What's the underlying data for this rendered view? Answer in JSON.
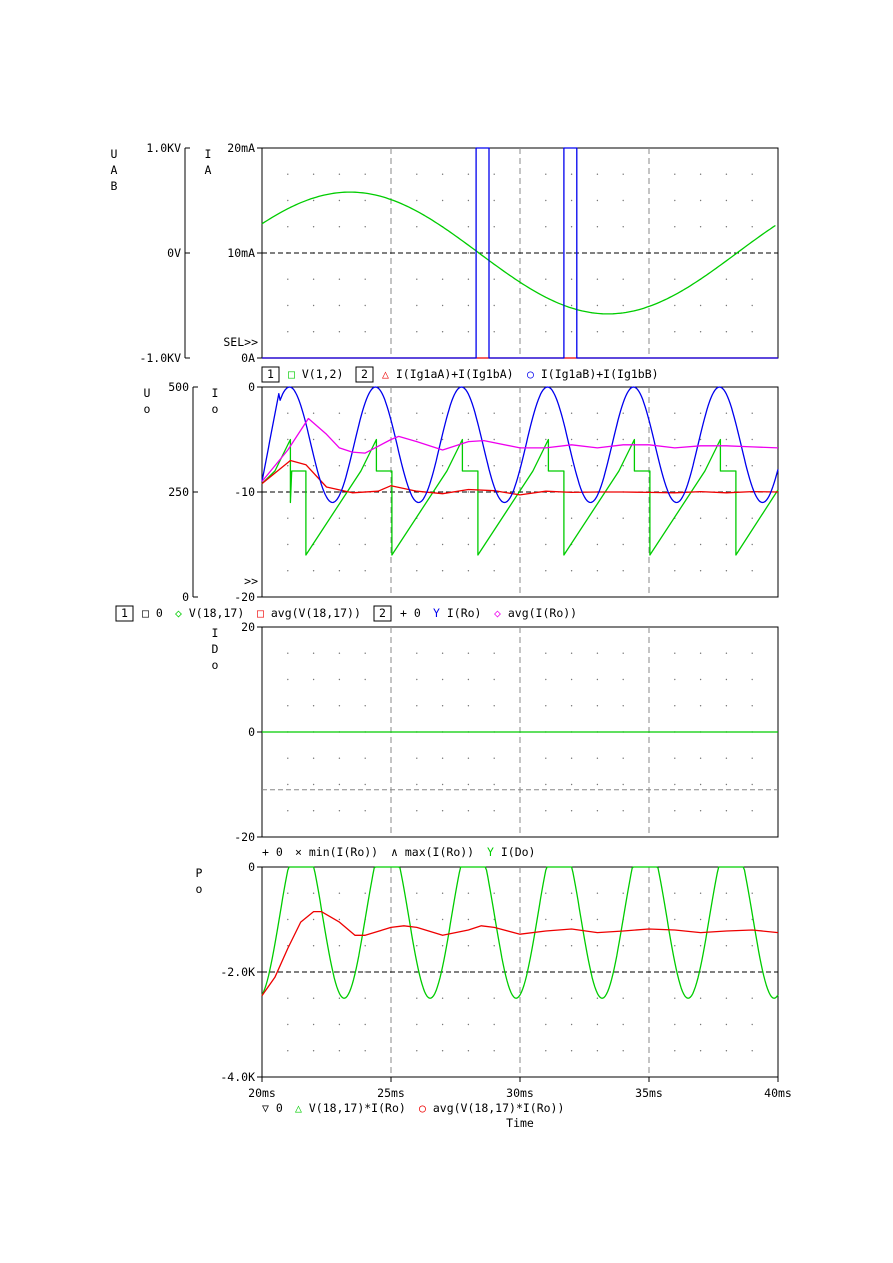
{
  "x_axis": {
    "label": "Time",
    "range_ms": [
      20,
      40
    ],
    "ticks": [
      {
        "value": 20,
        "label": "20ms"
      },
      {
        "value": 25,
        "label": "25ms"
      },
      {
        "value": 30,
        "label": "30ms"
      },
      {
        "value": 35,
        "label": "35ms"
      },
      {
        "value": 40,
        "label": "40ms"
      }
    ]
  },
  "panels": [
    {
      "id": "p1",
      "left_axis_title": [
        "U",
        "A",
        "B"
      ],
      "left_ticks": [
        {
          "value": 1,
          "label": "1.0KV"
        },
        {
          "value": 0,
          "label": "0V"
        },
        {
          "value": -1,
          "label": "-1.0KV"
        }
      ],
      "right_axis_title": [
        "I",
        "A"
      ],
      "right_ticks": [
        {
          "value": 20,
          "label": "20mA"
        },
        {
          "value": 10,
          "label": "10mA"
        },
        {
          "value": 0,
          "label": "0A"
        }
      ],
      "sel_marker": "SEL>>",
      "legend": [
        {
          "text": "1",
          "boxed": true
        },
        {
          "text": "□ V(1,2)",
          "color": "#00cc00"
        },
        {
          "text": "2",
          "boxed": true
        },
        {
          "text": "△ I(Ig1aA)+I(Ig1bA)",
          "color": "#ee0000"
        },
        {
          "text": "○ I(Ig1aB)+I(Ig1bB)",
          "color": "#0000ee"
        }
      ]
    },
    {
      "id": "p2",
      "left_axis_title": [
        "U",
        "o"
      ],
      "left_ticks": [
        {
          "value": 500,
          "label": "500"
        },
        {
          "value": 250,
          "label": "250"
        },
        {
          "value": 0,
          "label": "0"
        }
      ],
      "right_axis_title": [
        "I",
        "o"
      ],
      "right_ticks": [
        {
          "value": 0,
          "label": "0"
        },
        {
          "value": -10,
          "label": "-10"
        },
        {
          "value": -20,
          "label": "-20"
        }
      ],
      "sel_marker": ">>",
      "legend": [
        {
          "text": "1",
          "boxed": true
        },
        {
          "text": "□ 0",
          "color": "#000000"
        },
        {
          "text": "◇ V(18,17)",
          "color": "#00cc00"
        },
        {
          "text": "□ avg(V(18,17))",
          "color": "#ee0000"
        },
        {
          "text": "2",
          "boxed": true
        },
        {
          "text": "+ 0",
          "color": "#000000"
        },
        {
          "text": "Y I(Ro)",
          "color": "#0000ee"
        },
        {
          "text": "◇ avg(I(Ro))",
          "color": "#ee00ee"
        }
      ]
    },
    {
      "id": "p3",
      "right_axis_title": [
        "I",
        "D",
        "o"
      ],
      "right_ticks": [
        {
          "value": 20,
          "label": "20"
        },
        {
          "value": 0,
          "label": "0"
        },
        {
          "value": -20,
          "label": "-20"
        }
      ],
      "legend": [
        {
          "text": "+ 0",
          "color": "#000000"
        },
        {
          "text": "× min(I(Ro))",
          "color": "#000000"
        },
        {
          "text": "∧ max(I(Ro))",
          "color": "#000000"
        },
        {
          "text": "Y I(Do)",
          "color": "#00cc00"
        }
      ]
    },
    {
      "id": "p4",
      "right_axis_title": [
        "P",
        "o"
      ],
      "right_ticks": [
        {
          "value": 0,
          "label": "0"
        },
        {
          "value": -2,
          "label": "-2.0K"
        },
        {
          "value": -4,
          "label": "-4.0K"
        }
      ],
      "legend": [
        {
          "text": "▽ 0",
          "color": "#000000"
        },
        {
          "text": "△ V(18,17)*I(Ro)",
          "color": "#00cc00"
        },
        {
          "text": "○ avg(V(18,17)*I(Ro))",
          "color": "#ee0000"
        }
      ]
    }
  ],
  "colors": {
    "green": "#00cc00",
    "red": "#ee0000",
    "blue": "#0000ee",
    "magenta": "#ee00ee",
    "grid": "#888888"
  },
  "chart_data": [
    {
      "type": "line",
      "title": "",
      "xlabel": "Time",
      "x_unit": "ms",
      "xlim": [
        20,
        40
      ],
      "y_axes": [
        {
          "name": "UAB",
          "unit": "kV",
          "ylim": [
            -1,
            1
          ]
        },
        {
          "name": "IA",
          "unit": "mA",
          "ylim": [
            0,
            20
          ]
        }
      ],
      "series": [
        {
          "name": "V(1,2)",
          "axis": "UAB",
          "color": "#00cc00",
          "x": [
            20,
            21,
            22,
            23,
            24,
            25,
            26,
            27,
            28,
            29,
            30,
            31,
            32,
            33,
            34,
            35,
            36,
            37,
            38,
            39,
            40
          ],
          "values": [
            0.28,
            0.44,
            0.54,
            0.58,
            0.56,
            0.49,
            0.38,
            0.24,
            0.08,
            -0.08,
            -0.24,
            -0.38,
            -0.49,
            -0.56,
            -0.58,
            -0.54,
            -0.44,
            -0.3,
            -0.14,
            0.04,
            0.28
          ]
        },
        {
          "name": "I(Ig1aA)+I(Ig1bA)",
          "axis": "IA",
          "color": "#ee0000",
          "x": [
            20,
            28.3,
            28.3,
            28.8,
            28.8,
            31.7,
            31.7,
            32.2,
            32.2,
            40
          ],
          "values": [
            0,
            0,
            0,
            0,
            0,
            0,
            0,
            0,
            0,
            0
          ]
        },
        {
          "name": "I(Ig1aB)+I(Ig1bB)",
          "axis": "IA",
          "color": "#0000ee",
          "x": [
            20,
            28.3,
            28.3,
            28.8,
            28.8,
            31.7,
            31.7,
            32.2,
            32.2,
            40
          ],
          "values": [
            0,
            0,
            20,
            20,
            0,
            0,
            20,
            20,
            0,
            0
          ]
        }
      ],
      "grid": true
    },
    {
      "type": "line",
      "title": "",
      "xlabel": "Time",
      "x_unit": "ms",
      "xlim": [
        20,
        40
      ],
      "y_axes": [
        {
          "name": "Uo",
          "unit": "V",
          "ylim": [
            0,
            500
          ]
        },
        {
          "name": "Io",
          "unit": "A",
          "ylim": [
            -20,
            0
          ]
        }
      ],
      "series": [
        {
          "name": "V(18,17)",
          "axis": "Uo",
          "color": "#00cc00",
          "period_ms": 3.333,
          "peak": 375,
          "trough": 100,
          "first_peak": 325,
          "note_step": 300
        },
        {
          "name": "avg(V(18,17))",
          "axis": "Uo",
          "color": "#ee0000",
          "x": [
            20,
            21.1,
            21.7,
            22.5,
            23.5,
            24.5,
            25,
            26,
            27,
            28,
            29,
            30,
            31,
            32,
            33,
            34,
            35,
            36,
            37,
            38,
            39,
            40
          ],
          "values": [
            270,
            325,
            315,
            262,
            248,
            252,
            265,
            252,
            246,
            256,
            253,
            243,
            252,
            249,
            250,
            250,
            249,
            248,
            251,
            248,
            251,
            250
          ]
        },
        {
          "name": "I(Ro)",
          "axis": "Io",
          "color": "#0000ee",
          "period_ms": 3.333,
          "max": 0,
          "min": -11
        },
        {
          "name": "avg(I(Ro))",
          "axis": "Io",
          "color": "#ee00ee",
          "x": [
            20,
            21,
            21.8,
            22.5,
            23,
            23.5,
            24,
            25,
            25.3,
            26,
            27,
            28,
            28.6,
            30,
            31,
            32,
            33,
            34,
            35,
            36,
            37,
            38,
            39,
            40
          ],
          "values": [
            -9,
            -6,
            -3,
            -4.5,
            -5.8,
            -6.2,
            -6.3,
            -5,
            -4.7,
            -5.2,
            -6,
            -5.2,
            -5.1,
            -5.8,
            -5.8,
            -5.5,
            -5.8,
            -5.5,
            -5.5,
            -5.8,
            -5.6,
            -5.6,
            -5.7,
            -5.8
          ]
        }
      ],
      "grid": true
    },
    {
      "type": "line",
      "title": "",
      "xlabel": "Time",
      "x_unit": "ms",
      "xlim": [
        20,
        40
      ],
      "y_axes": [
        {
          "name": "IDo",
          "unit": "A",
          "ylim": [
            -20,
            20
          ]
        }
      ],
      "series": [
        {
          "name": "I(Do)",
          "axis": "IDo",
          "color": "#00cc00",
          "x": [
            20,
            40
          ],
          "values": [
            0,
            0
          ]
        }
      ],
      "grid": true
    },
    {
      "type": "line",
      "title": "",
      "xlabel": "Time",
      "x_unit": "ms",
      "xlim": [
        20,
        40
      ],
      "y_axes": [
        {
          "name": "Po",
          "unit": "kW",
          "ylim": [
            -4,
            0
          ]
        }
      ],
      "series": [
        {
          "name": "V(18,17)*I(Ro)",
          "axis": "Po",
          "color": "#00cc00",
          "period_ms": 3.333,
          "max": 0,
          "min": -2.5
        },
        {
          "name": "avg(V(18,17)*I(Ro))",
          "axis": "Po",
          "color": "#ee0000",
          "x": [
            20,
            20.5,
            21,
            21.5,
            22,
            22.3,
            23,
            23.6,
            24,
            25,
            25.5,
            26,
            27,
            28,
            28.5,
            29,
            30,
            31,
            32,
            33,
            34,
            35,
            36,
            37,
            38,
            39,
            40
          ],
          "values": [
            -2.45,
            -2.1,
            -1.55,
            -1.05,
            -0.85,
            -0.85,
            -1.05,
            -1.3,
            -1.3,
            -1.15,
            -1.12,
            -1.15,
            -1.3,
            -1.2,
            -1.12,
            -1.15,
            -1.28,
            -1.22,
            -1.18,
            -1.25,
            -1.22,
            -1.18,
            -1.2,
            -1.25,
            -1.22,
            -1.2,
            -1.25
          ]
        }
      ],
      "grid": true
    }
  ]
}
